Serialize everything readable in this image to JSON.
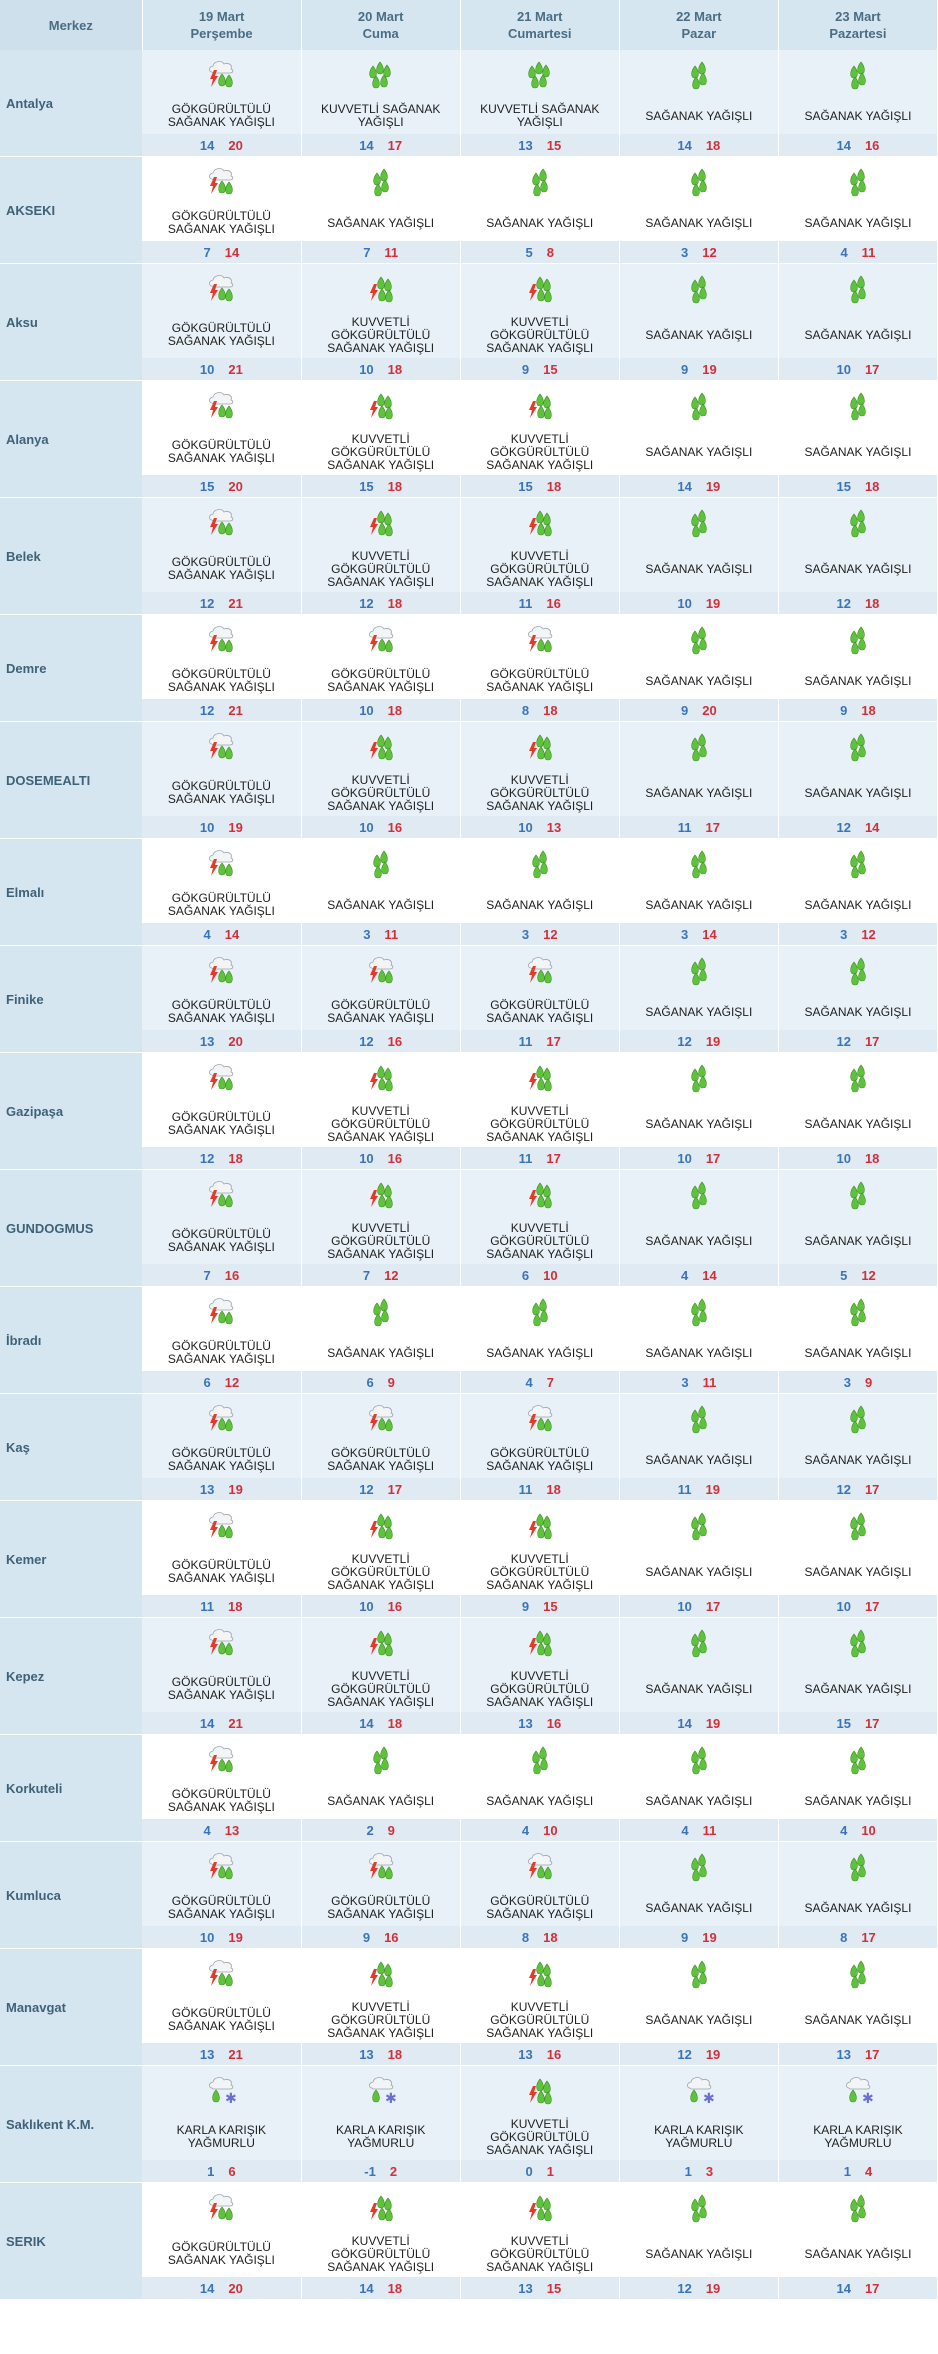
{
  "header": {
    "merkez": "Merkez",
    "days": [
      {
        "date": "19 Mart",
        "weekday": "Perşembe"
      },
      {
        "date": "20 Mart",
        "weekday": "Cuma"
      },
      {
        "date": "21 Mart",
        "weekday": "Cumartesi"
      },
      {
        "date": "22 Mart",
        "weekday": "Pazar"
      },
      {
        "date": "23 Mart",
        "weekday": "Pazartesi"
      }
    ]
  },
  "colors": {
    "header_bg": "#d6e6f1",
    "min_temp": "#3a74b8",
    "max_temp": "#d1303a",
    "rain_green": "#5fc23c",
    "lightning": "#e23b2a"
  },
  "rows": [
    {
      "city": "Antalya",
      "days": [
        {
          "icon": "thunder-rain-icon",
          "desc": "GÖKGÜRÜLTÜLÜ SAĞANAK YAĞIŞLI",
          "min": "14",
          "max": "20"
        },
        {
          "icon": "heavy-rain-icon",
          "desc": "KUVVETLİ SAĞANAK YAĞIŞLI",
          "min": "14",
          "max": "17"
        },
        {
          "icon": "heavy-rain-icon",
          "desc": "KUVVETLİ SAĞANAK YAĞIŞLI",
          "min": "13",
          "max": "15"
        },
        {
          "icon": "rain-showers-icon",
          "desc": "SAĞANAK YAĞIŞLI",
          "min": "14",
          "max": "18"
        },
        {
          "icon": "rain-showers-icon",
          "desc": "SAĞANAK YAĞIŞLI",
          "min": "14",
          "max": "16"
        }
      ]
    },
    {
      "city": "AKSEKI",
      "days": [
        {
          "icon": "thunder-rain-icon",
          "desc": "GÖKGÜRÜLTÜLÜ SAĞANAK YAĞIŞLI",
          "min": "7",
          "max": "14"
        },
        {
          "icon": "rain-showers-icon",
          "desc": "SAĞANAK YAĞIŞLI",
          "min": "7",
          "max": "11"
        },
        {
          "icon": "rain-showers-icon",
          "desc": "SAĞANAK YAĞIŞLI",
          "min": "5",
          "max": "8"
        },
        {
          "icon": "rain-showers-icon",
          "desc": "SAĞANAK YAĞIŞLI",
          "min": "3",
          "max": "12"
        },
        {
          "icon": "rain-showers-icon",
          "desc": "SAĞANAK YAĞIŞLI",
          "min": "4",
          "max": "11"
        }
      ]
    },
    {
      "city": "Aksu",
      "days": [
        {
          "icon": "thunder-rain-icon",
          "desc": "GÖKGÜRÜLTÜLÜ SAĞANAK YAĞIŞLI",
          "min": "10",
          "max": "21"
        },
        {
          "icon": "heavy-thunder-rain-icon",
          "desc": "KUVVETLİ GÖKGÜRÜLTÜLÜ SAĞANAK YAĞIŞLI",
          "min": "10",
          "max": "18"
        },
        {
          "icon": "heavy-thunder-rain-icon",
          "desc": "KUVVETLİ GÖKGÜRÜLTÜLÜ SAĞANAK YAĞIŞLI",
          "min": "9",
          "max": "15"
        },
        {
          "icon": "rain-showers-icon",
          "desc": "SAĞANAK YAĞIŞLI",
          "min": "9",
          "max": "19"
        },
        {
          "icon": "rain-showers-icon",
          "desc": "SAĞANAK YAĞIŞLI",
          "min": "10",
          "max": "17"
        }
      ]
    },
    {
      "city": "Alanya",
      "days": [
        {
          "icon": "thunder-rain-icon",
          "desc": "GÖKGÜRÜLTÜLÜ SAĞANAK YAĞIŞLI",
          "min": "15",
          "max": "20"
        },
        {
          "icon": "heavy-thunder-rain-icon",
          "desc": "KUVVETLİ GÖKGÜRÜLTÜLÜ SAĞANAK YAĞIŞLI",
          "min": "15",
          "max": "18"
        },
        {
          "icon": "heavy-thunder-rain-icon",
          "desc": "KUVVETLİ GÖKGÜRÜLTÜLÜ SAĞANAK YAĞIŞLI",
          "min": "15",
          "max": "18"
        },
        {
          "icon": "rain-showers-icon",
          "desc": "SAĞANAK YAĞIŞLI",
          "min": "14",
          "max": "19"
        },
        {
          "icon": "rain-showers-icon",
          "desc": "SAĞANAK YAĞIŞLI",
          "min": "15",
          "max": "18"
        }
      ]
    },
    {
      "city": "Belek",
      "days": [
        {
          "icon": "thunder-rain-icon",
          "desc": "GÖKGÜRÜLTÜLÜ SAĞANAK YAĞIŞLI",
          "min": "12",
          "max": "21"
        },
        {
          "icon": "heavy-thunder-rain-icon",
          "desc": "KUVVETLİ GÖKGÜRÜLTÜLÜ SAĞANAK YAĞIŞLI",
          "min": "12",
          "max": "18"
        },
        {
          "icon": "heavy-thunder-rain-icon",
          "desc": "KUVVETLİ GÖKGÜRÜLTÜLÜ SAĞANAK YAĞIŞLI",
          "min": "11",
          "max": "16"
        },
        {
          "icon": "rain-showers-icon",
          "desc": "SAĞANAK YAĞIŞLI",
          "min": "10",
          "max": "19"
        },
        {
          "icon": "rain-showers-icon",
          "desc": "SAĞANAK YAĞIŞLI",
          "min": "12",
          "max": "18"
        }
      ]
    },
    {
      "city": "Demre",
      "days": [
        {
          "icon": "thunder-rain-icon",
          "desc": "GÖKGÜRÜLTÜLÜ SAĞANAK YAĞIŞLI",
          "min": "12",
          "max": "21"
        },
        {
          "icon": "thunder-rain-icon",
          "desc": "GÖKGÜRÜLTÜLÜ SAĞANAK YAĞIŞLI",
          "min": "10",
          "max": "18"
        },
        {
          "icon": "thunder-rain-icon",
          "desc": "GÖKGÜRÜLTÜLÜ SAĞANAK YAĞIŞLI",
          "min": "8",
          "max": "18"
        },
        {
          "icon": "rain-showers-icon",
          "desc": "SAĞANAK YAĞIŞLI",
          "min": "9",
          "max": "20"
        },
        {
          "icon": "rain-showers-icon",
          "desc": "SAĞANAK YAĞIŞLI",
          "min": "9",
          "max": "18"
        }
      ]
    },
    {
      "city": "DOSEMEALTI",
      "days": [
        {
          "icon": "thunder-rain-icon",
          "desc": "GÖKGÜRÜLTÜLÜ SAĞANAK YAĞIŞLI",
          "min": "10",
          "max": "19"
        },
        {
          "icon": "heavy-thunder-rain-icon",
          "desc": "KUVVETLİ GÖKGÜRÜLTÜLÜ SAĞANAK YAĞIŞLI",
          "min": "10",
          "max": "16"
        },
        {
          "icon": "heavy-thunder-rain-icon",
          "desc": "KUVVETLİ GÖKGÜRÜLTÜLÜ SAĞANAK YAĞIŞLI",
          "min": "10",
          "max": "13"
        },
        {
          "icon": "rain-showers-icon",
          "desc": "SAĞANAK YAĞIŞLI",
          "min": "11",
          "max": "17"
        },
        {
          "icon": "rain-showers-icon",
          "desc": "SAĞANAK YAĞIŞLI",
          "min": "12",
          "max": "14"
        }
      ]
    },
    {
      "city": "Elmalı",
      "days": [
        {
          "icon": "thunder-rain-icon",
          "desc": "GÖKGÜRÜLTÜLÜ SAĞANAK YAĞIŞLI",
          "min": "4",
          "max": "14"
        },
        {
          "icon": "rain-showers-icon",
          "desc": "SAĞANAK YAĞIŞLI",
          "min": "3",
          "max": "11"
        },
        {
          "icon": "rain-showers-icon",
          "desc": "SAĞANAK YAĞIŞLI",
          "min": "3",
          "max": "12"
        },
        {
          "icon": "rain-showers-icon",
          "desc": "SAĞANAK YAĞIŞLI",
          "min": "3",
          "max": "14"
        },
        {
          "icon": "rain-showers-icon",
          "desc": "SAĞANAK YAĞIŞLI",
          "min": "3",
          "max": "12"
        }
      ]
    },
    {
      "city": "Finike",
      "days": [
        {
          "icon": "thunder-rain-icon",
          "desc": "GÖKGÜRÜLTÜLÜ SAĞANAK YAĞIŞLI",
          "min": "13",
          "max": "20"
        },
        {
          "icon": "thunder-rain-icon",
          "desc": "GÖKGÜRÜLTÜLÜ SAĞANAK YAĞIŞLI",
          "min": "12",
          "max": "16"
        },
        {
          "icon": "thunder-rain-icon",
          "desc": "GÖKGÜRÜLTÜLÜ SAĞANAK YAĞIŞLI",
          "min": "11",
          "max": "17"
        },
        {
          "icon": "rain-showers-icon",
          "desc": "SAĞANAK YAĞIŞLI",
          "min": "12",
          "max": "19"
        },
        {
          "icon": "rain-showers-icon",
          "desc": "SAĞANAK YAĞIŞLI",
          "min": "12",
          "max": "17"
        }
      ]
    },
    {
      "city": "Gazipaşa",
      "days": [
        {
          "icon": "thunder-rain-icon",
          "desc": "GÖKGÜRÜLTÜLÜ SAĞANAK YAĞIŞLI",
          "min": "12",
          "max": "18"
        },
        {
          "icon": "heavy-thunder-rain-icon",
          "desc": "KUVVETLİ GÖKGÜRÜLTÜLÜ SAĞANAK YAĞIŞLI",
          "min": "10",
          "max": "16"
        },
        {
          "icon": "heavy-thunder-rain-icon",
          "desc": "KUVVETLİ GÖKGÜRÜLTÜLÜ SAĞANAK YAĞIŞLI",
          "min": "11",
          "max": "17"
        },
        {
          "icon": "rain-showers-icon",
          "desc": "SAĞANAK YAĞIŞLI",
          "min": "10",
          "max": "17"
        },
        {
          "icon": "rain-showers-icon",
          "desc": "SAĞANAK YAĞIŞLI",
          "min": "10",
          "max": "18"
        }
      ]
    },
    {
      "city": "GUNDOGMUS",
      "days": [
        {
          "icon": "thunder-rain-icon",
          "desc": "GÖKGÜRÜLTÜLÜ SAĞANAK YAĞIŞLI",
          "min": "7",
          "max": "16"
        },
        {
          "icon": "heavy-thunder-rain-icon",
          "desc": "KUVVETLİ GÖKGÜRÜLTÜLÜ SAĞANAK YAĞIŞLI",
          "min": "7",
          "max": "12"
        },
        {
          "icon": "heavy-thunder-rain-icon",
          "desc": "KUVVETLİ GÖKGÜRÜLTÜLÜ SAĞANAK YAĞIŞLI",
          "min": "6",
          "max": "10"
        },
        {
          "icon": "rain-showers-icon",
          "desc": "SAĞANAK YAĞIŞLI",
          "min": "4",
          "max": "14"
        },
        {
          "icon": "rain-showers-icon",
          "desc": "SAĞANAK YAĞIŞLI",
          "min": "5",
          "max": "12"
        }
      ]
    },
    {
      "city": "İbradı",
      "days": [
        {
          "icon": "thunder-rain-icon",
          "desc": "GÖKGÜRÜLTÜLÜ SAĞANAK YAĞIŞLI",
          "min": "6",
          "max": "12"
        },
        {
          "icon": "rain-showers-icon",
          "desc": "SAĞANAK YAĞIŞLI",
          "min": "6",
          "max": "9"
        },
        {
          "icon": "rain-showers-icon",
          "desc": "SAĞANAK YAĞIŞLI",
          "min": "4",
          "max": "7"
        },
        {
          "icon": "rain-showers-icon",
          "desc": "SAĞANAK YAĞIŞLI",
          "min": "3",
          "max": "11"
        },
        {
          "icon": "rain-showers-icon",
          "desc": "SAĞANAK YAĞIŞLI",
          "min": "3",
          "max": "9"
        }
      ]
    },
    {
      "city": "Kaş",
      "days": [
        {
          "icon": "thunder-rain-icon",
          "desc": "GÖKGÜRÜLTÜLÜ SAĞANAK YAĞIŞLI",
          "min": "13",
          "max": "19"
        },
        {
          "icon": "thunder-rain-icon",
          "desc": "GÖKGÜRÜLTÜLÜ SAĞANAK YAĞIŞLI",
          "min": "12",
          "max": "17"
        },
        {
          "icon": "thunder-rain-icon",
          "desc": "GÖKGÜRÜLTÜLÜ SAĞANAK YAĞIŞLI",
          "min": "11",
          "max": "18"
        },
        {
          "icon": "rain-showers-icon",
          "desc": "SAĞANAK YAĞIŞLI",
          "min": "11",
          "max": "19"
        },
        {
          "icon": "rain-showers-icon",
          "desc": "SAĞANAK YAĞIŞLI",
          "min": "12",
          "max": "17"
        }
      ]
    },
    {
      "city": "Kemer",
      "days": [
        {
          "icon": "thunder-rain-icon",
          "desc": "GÖKGÜRÜLTÜLÜ SAĞANAK YAĞIŞLI",
          "min": "11",
          "max": "18"
        },
        {
          "icon": "heavy-thunder-rain-icon",
          "desc": "KUVVETLİ GÖKGÜRÜLTÜLÜ SAĞANAK YAĞIŞLI",
          "min": "10",
          "max": "16"
        },
        {
          "icon": "heavy-thunder-rain-icon",
          "desc": "KUVVETLİ GÖKGÜRÜLTÜLÜ SAĞANAK YAĞIŞLI",
          "min": "9",
          "max": "15"
        },
        {
          "icon": "rain-showers-icon",
          "desc": "SAĞANAK YAĞIŞLI",
          "min": "10",
          "max": "17"
        },
        {
          "icon": "rain-showers-icon",
          "desc": "SAĞANAK YAĞIŞLI",
          "min": "10",
          "max": "17"
        }
      ]
    },
    {
      "city": "Kepez",
      "days": [
        {
          "icon": "thunder-rain-icon",
          "desc": "GÖKGÜRÜLTÜLÜ SAĞANAK YAĞIŞLI",
          "min": "14",
          "max": "21"
        },
        {
          "icon": "heavy-thunder-rain-icon",
          "desc": "KUVVETLİ GÖKGÜRÜLTÜLÜ SAĞANAK YAĞIŞLI",
          "min": "14",
          "max": "18"
        },
        {
          "icon": "heavy-thunder-rain-icon",
          "desc": "KUVVETLİ GÖKGÜRÜLTÜLÜ SAĞANAK YAĞIŞLI",
          "min": "13",
          "max": "16"
        },
        {
          "icon": "rain-showers-icon",
          "desc": "SAĞANAK YAĞIŞLI",
          "min": "14",
          "max": "19"
        },
        {
          "icon": "rain-showers-icon",
          "desc": "SAĞANAK YAĞIŞLI",
          "min": "15",
          "max": "17"
        }
      ]
    },
    {
      "city": "Korkuteli",
      "days": [
        {
          "icon": "thunder-rain-icon",
          "desc": "GÖKGÜRÜLTÜLÜ SAĞANAK YAĞIŞLI",
          "min": "4",
          "max": "13"
        },
        {
          "icon": "rain-showers-icon",
          "desc": "SAĞANAK YAĞIŞLI",
          "min": "2",
          "max": "9"
        },
        {
          "icon": "rain-showers-icon",
          "desc": "SAĞANAK YAĞIŞLI",
          "min": "4",
          "max": "10"
        },
        {
          "icon": "rain-showers-icon",
          "desc": "SAĞANAK YAĞIŞLI",
          "min": "4",
          "max": "11"
        },
        {
          "icon": "rain-showers-icon",
          "desc": "SAĞANAK YAĞIŞLI",
          "min": "4",
          "max": "10"
        }
      ]
    },
    {
      "city": "Kumluca",
      "days": [
        {
          "icon": "thunder-rain-icon",
          "desc": "GÖKGÜRÜLTÜLÜ SAĞANAK YAĞIŞLI",
          "min": "10",
          "max": "19"
        },
        {
          "icon": "thunder-rain-icon",
          "desc": "GÖKGÜRÜLTÜLÜ SAĞANAK YAĞIŞLI",
          "min": "9",
          "max": "16"
        },
        {
          "icon": "thunder-rain-icon",
          "desc": "GÖKGÜRÜLTÜLÜ SAĞANAK YAĞIŞLI",
          "min": "8",
          "max": "18"
        },
        {
          "icon": "rain-showers-icon",
          "desc": "SAĞANAK YAĞIŞLI",
          "min": "9",
          "max": "19"
        },
        {
          "icon": "rain-showers-icon",
          "desc": "SAĞANAK YAĞIŞLI",
          "min": "8",
          "max": "17"
        }
      ]
    },
    {
      "city": "Manavgat",
      "days": [
        {
          "icon": "thunder-rain-icon",
          "desc": "GÖKGÜRÜLTÜLÜ SAĞANAK YAĞIŞLI",
          "min": "13",
          "max": "21"
        },
        {
          "icon": "heavy-thunder-rain-icon",
          "desc": "KUVVETLİ GÖKGÜRÜLTÜLÜ SAĞANAK YAĞIŞLI",
          "min": "13",
          "max": "18"
        },
        {
          "icon": "heavy-thunder-rain-icon",
          "desc": "KUVVETLİ GÖKGÜRÜLTÜLÜ SAĞANAK YAĞIŞLI",
          "min": "13",
          "max": "16"
        },
        {
          "icon": "rain-showers-icon",
          "desc": "SAĞANAK YAĞIŞLI",
          "min": "12",
          "max": "19"
        },
        {
          "icon": "rain-showers-icon",
          "desc": "SAĞANAK YAĞIŞLI",
          "min": "13",
          "max": "17"
        }
      ]
    },
    {
      "city": "Saklıkent K.M.",
      "days": [
        {
          "icon": "sleet-icon",
          "desc": "KARLA KARIŞIK YAĞMURLU",
          "min": "1",
          "max": "6"
        },
        {
          "icon": "sleet-icon",
          "desc": "KARLA KARIŞIK YAĞMURLU",
          "min": "-1",
          "max": "2"
        },
        {
          "icon": "heavy-thunder-rain-icon",
          "desc": "KUVVETLİ GÖKGÜRÜLTÜLÜ SAĞANAK YAĞIŞLI",
          "min": "0",
          "max": "1"
        },
        {
          "icon": "sleet-icon",
          "desc": "KARLA KARIŞIK YAĞMURLU",
          "min": "1",
          "max": "3"
        },
        {
          "icon": "sleet-icon",
          "desc": "KARLA KARIŞIK YAĞMURLU",
          "min": "1",
          "max": "4"
        }
      ]
    },
    {
      "city": "SERIK",
      "days": [
        {
          "icon": "thunder-rain-icon",
          "desc": "GÖKGÜRÜLTÜLÜ SAĞANAK YAĞIŞLI",
          "min": "14",
          "max": "20"
        },
        {
          "icon": "heavy-thunder-rain-icon",
          "desc": "KUVVETLİ GÖKGÜRÜLTÜLÜ SAĞANAK YAĞIŞLI",
          "min": "14",
          "max": "18"
        },
        {
          "icon": "heavy-thunder-rain-icon",
          "desc": "KUVVETLİ GÖKGÜRÜLTÜLÜ SAĞANAK YAĞIŞLI",
          "min": "13",
          "max": "15"
        },
        {
          "icon": "rain-showers-icon",
          "desc": "SAĞANAK YAĞIŞLI",
          "min": "12",
          "max": "19"
        },
        {
          "icon": "rain-showers-icon",
          "desc": "SAĞANAK YAĞIŞLI",
          "min": "14",
          "max": "17"
        }
      ]
    }
  ]
}
